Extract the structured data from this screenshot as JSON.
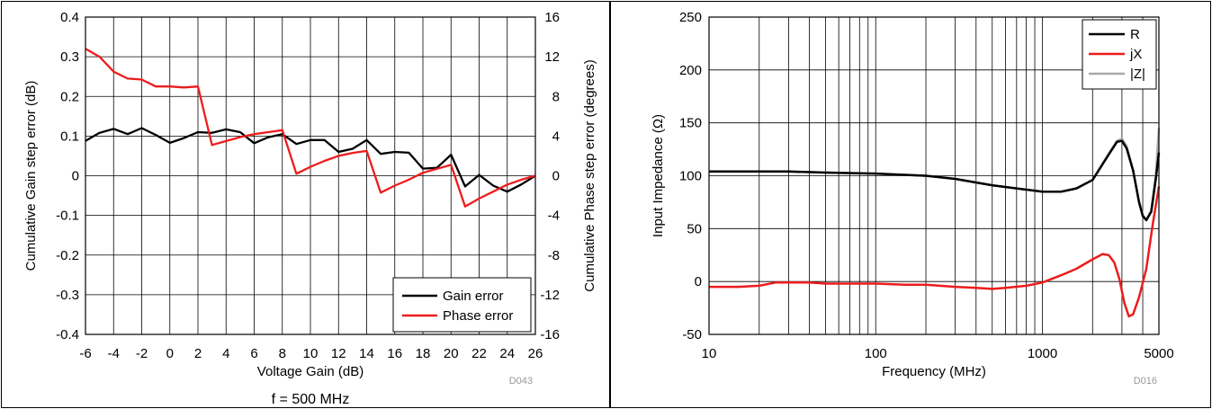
{
  "chart_data": [
    {
      "type": "line",
      "xlabel": "Voltage Gain (dB)",
      "ylabel": "Cumulative Gain step error (dB)",
      "y2label": "Cumulative Phase step error (degrees)",
      "code": "D043",
      "caption": "f = 500 MHz",
      "x_ticks": [
        "-6",
        "-4",
        "-2",
        "0",
        "2",
        "4",
        "6",
        "8",
        "10",
        "12",
        "14",
        "16",
        "18",
        "20",
        "22",
        "24",
        "26"
      ],
      "y_ticks": [
        "-0.4",
        "-0.3",
        "-0.2",
        "-0.1",
        "0",
        "0.1",
        "0.2",
        "0.3",
        "0.4"
      ],
      "y2_ticks": [
        "-16",
        "-12",
        "-8",
        "-4",
        "0",
        "4",
        "8",
        "12",
        "16"
      ],
      "xlim": [
        -6,
        26
      ],
      "ylim": [
        -0.4,
        0.4
      ],
      "y2lim": [
        -16,
        16
      ],
      "grid": true,
      "legend_position": "bottom-right",
      "x": [
        -6,
        -5,
        -4,
        -3,
        -2,
        -1,
        0,
        1,
        2,
        3,
        4,
        5,
        6,
        7,
        8,
        9,
        10,
        11,
        12,
        13,
        14,
        15,
        16,
        17,
        18,
        19,
        20,
        21,
        22,
        23,
        24,
        25,
        26
      ],
      "series": [
        {
          "name": "Gain error",
          "color": "#000000",
          "axis": "left",
          "values": [
            0.088,
            0.108,
            0.118,
            0.105,
            0.12,
            0.103,
            0.083,
            0.095,
            0.11,
            0.108,
            0.117,
            0.11,
            0.082,
            0.097,
            0.105,
            0.08,
            0.09,
            0.09,
            0.06,
            0.068,
            0.09,
            0.055,
            0.06,
            0.058,
            0.018,
            0.02,
            0.053,
            -0.027,
            0.002,
            -0.025,
            -0.04,
            -0.022,
            0.0
          ]
        },
        {
          "name": "Phase error",
          "color": "#ee1c1c",
          "axis": "right",
          "values": [
            12.8,
            12.0,
            10.5,
            9.8,
            9.7,
            9.0,
            9.0,
            8.9,
            9.0,
            3.1,
            3.5,
            3.9,
            4.2,
            4.4,
            4.6,
            0.2,
            0.9,
            1.5,
            2.0,
            2.3,
            2.5,
            -1.7,
            -1.0,
            -0.4,
            0.3,
            0.7,
            1.1,
            -3.1,
            -2.3,
            -1.6,
            -0.9,
            -0.4,
            0.0
          ]
        }
      ]
    },
    {
      "type": "line",
      "xlabel": "Frequency (MHz)",
      "ylabel": "Input Impedance (Ω)",
      "code": "D016",
      "x_scale": "log",
      "xlim": [
        10,
        5000
      ],
      "ylim": [
        -50,
        250
      ],
      "x_ticks": [
        "10",
        "100",
        "1000",
        "5000"
      ],
      "y_ticks": [
        "-50",
        "0",
        "50",
        "100",
        "150",
        "200",
        "250"
      ],
      "grid": true,
      "legend_position": "top-right",
      "series": [
        {
          "name": "R",
          "color": "#000000",
          "x": [
            10,
            20,
            30,
            50,
            100,
            200,
            300,
            500,
            700,
            1000,
            1300,
            1600,
            2000,
            2500,
            2800,
            3000,
            3200,
            3500,
            3800,
            4000,
            4200,
            4500,
            4800,
            5000
          ],
          "values": [
            104,
            104,
            104,
            103,
            102,
            100,
            97,
            91,
            88,
            85,
            85,
            88,
            96,
            120,
            132,
            133,
            126,
            105,
            75,
            62,
            58,
            66,
            98,
            122
          ]
        },
        {
          "name": "jX",
          "color": "#ee1c1c",
          "x": [
            10,
            12,
            15,
            20,
            25,
            30,
            40,
            50,
            70,
            100,
            150,
            200,
            300,
            400,
            500,
            600,
            800,
            1000,
            1300,
            1600,
            2000,
            2300,
            2500,
            2700,
            2900,
            3100,
            3300,
            3500,
            3800,
            4200,
            4600,
            5000
          ],
          "values": [
            -5,
            -5,
            -5,
            -4,
            -1,
            -1,
            -1,
            -2,
            -2,
            -2,
            -3,
            -3,
            -5,
            -6,
            -7,
            -6,
            -4,
            -1,
            6,
            12,
            21,
            26,
            25,
            18,
            2,
            -20,
            -33,
            -31,
            -15,
            12,
            55,
            90
          ]
        },
        {
          "name": "|Z|",
          "color": "#a9a9a9",
          "x": [
            10,
            20,
            30,
            50,
            100,
            200,
            300,
            500,
            700,
            1000,
            1300,
            1600,
            2000,
            2500,
            2800,
            3000,
            3200,
            3500,
            3800,
            4000,
            4200,
            4500,
            4800,
            5000
          ],
          "values": [
            104,
            104,
            104,
            103,
            102,
            100,
            97,
            91,
            88,
            85,
            85,
            88,
            96,
            121,
            133,
            135,
            128,
            105,
            76,
            63,
            58,
            67,
            102,
            145
          ]
        }
      ]
    }
  ]
}
